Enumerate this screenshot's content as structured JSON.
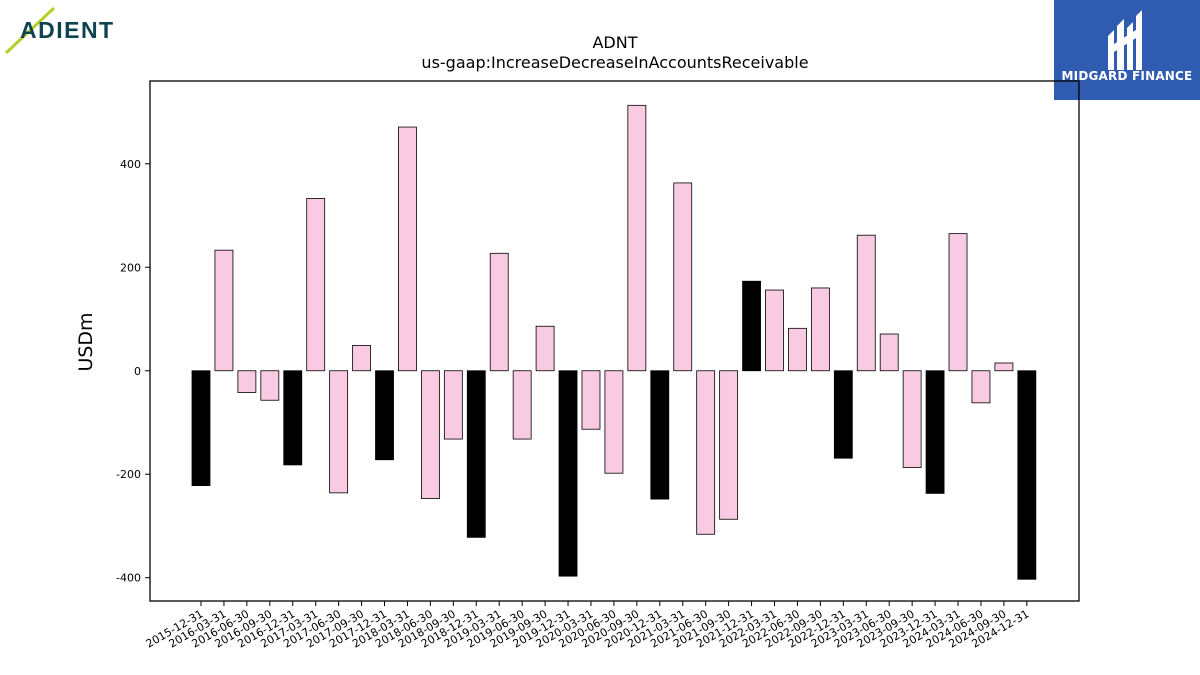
{
  "branding": {
    "company_logo_text": "ADIENT",
    "company_logo_color": "#0f4350",
    "company_accent_color": "#b5cf2a",
    "publisher_name": "MIDGARD FINANCE",
    "publisher_bg_color": "#2f5bb0"
  },
  "chart_data": {
    "type": "bar",
    "title": "ADNT",
    "subtitle": "us-gaap:IncreaseDecreaseInAccountsReceivable",
    "xlabel": "",
    "ylabel": "USDm",
    "ylim": [
      -445,
      560
    ],
    "yticks": [
      -400,
      -200,
      0,
      200,
      400
    ],
    "grid": false,
    "colors": {
      "quarter": "#f9cbe3",
      "fiscal_year_end": "#000000",
      "edge": "#000000"
    },
    "categories": [
      "2015-12-31",
      "2016-03-31",
      "2016-06-30",
      "2016-09-30",
      "2016-12-31",
      "2017-03-31",
      "2017-06-30",
      "2017-09-30",
      "2017-12-31",
      "2018-03-31",
      "2018-06-30",
      "2018-09-30",
      "2018-12-31",
      "2019-03-31",
      "2019-06-30",
      "2019-09-30",
      "2019-12-31",
      "2020-03-31",
      "2020-06-30",
      "2020-09-30",
      "2020-12-31",
      "2021-03-31",
      "2021-06-30",
      "2021-09-30",
      "2021-12-31",
      "2022-03-31",
      "2022-06-30",
      "2022-09-30",
      "2022-12-31",
      "2023-03-31",
      "2023-06-30",
      "2023-09-30",
      "2023-12-31",
      "2024-03-31",
      "2024-06-30",
      "2024-09-30",
      "2024-12-31"
    ],
    "values": [
      -222,
      233,
      -42,
      -57,
      -182,
      333,
      -236,
      49,
      -172,
      471,
      -247,
      -132,
      -322,
      227,
      -132,
      86,
      -397,
      -113,
      -198,
      513,
      -248,
      363,
      -316,
      -287,
      173,
      156,
      82,
      160,
      -169,
      262,
      71,
      -187,
      -237,
      265,
      -62,
      15,
      -403
    ],
    "fiscal_year_end": [
      true,
      false,
      false,
      false,
      true,
      false,
      false,
      false,
      true,
      false,
      false,
      false,
      true,
      false,
      false,
      false,
      true,
      false,
      false,
      false,
      true,
      false,
      false,
      false,
      true,
      false,
      false,
      false,
      true,
      false,
      false,
      false,
      true,
      false,
      false,
      false,
      true
    ]
  }
}
